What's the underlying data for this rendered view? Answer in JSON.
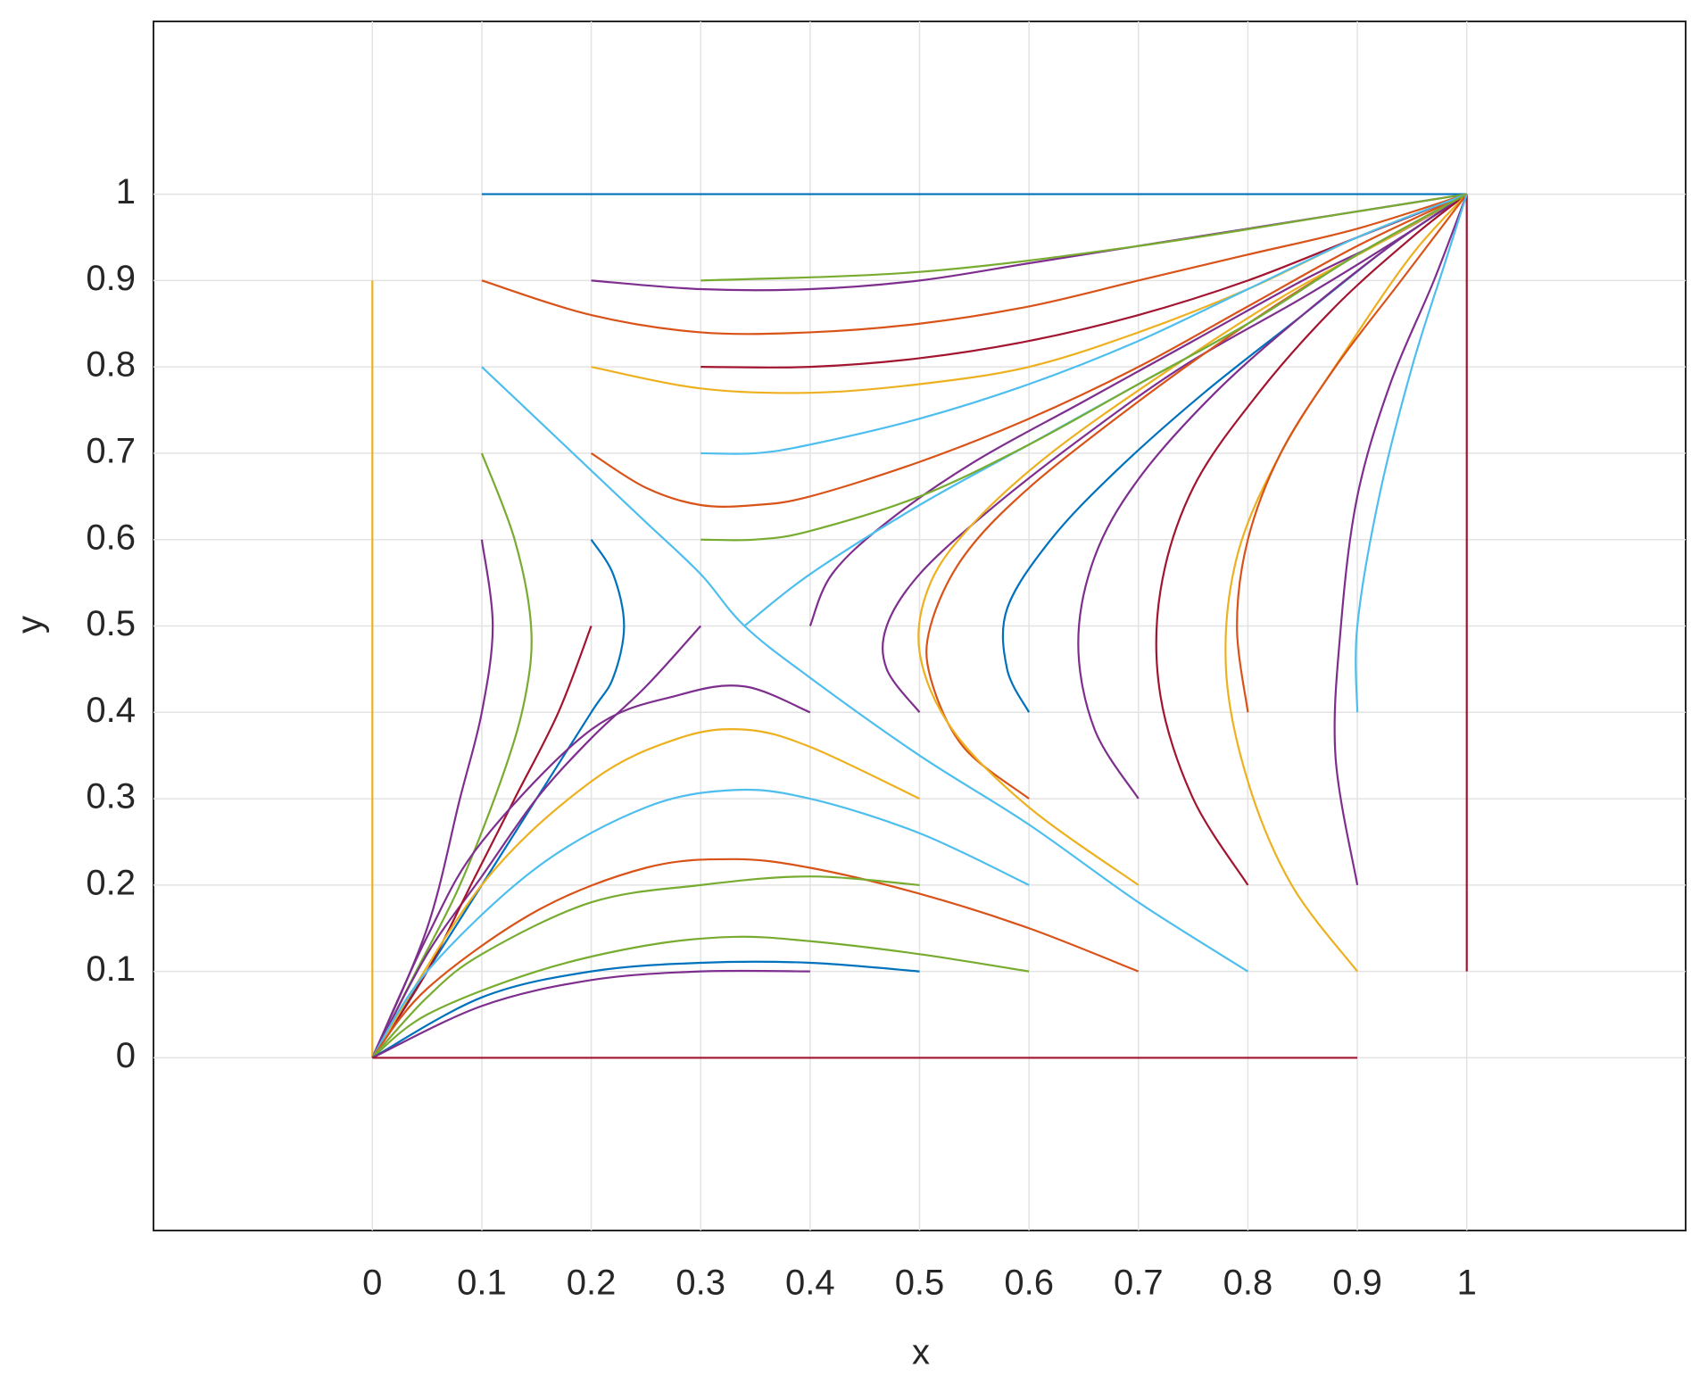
{
  "chart_data": {
    "type": "line",
    "x_label": "x",
    "y_label": "y",
    "xlim": [
      -0.2,
      1.2
    ],
    "ylim": [
      -0.2,
      1.2
    ],
    "xticks": [
      0,
      0.1,
      0.2,
      0.3,
      0.4,
      0.5,
      0.6,
      0.7,
      0.8,
      0.9,
      1
    ],
    "yticks": [
      0,
      0.1,
      0.2,
      0.3,
      0.4,
      0.5,
      0.6,
      0.7,
      0.8,
      0.9,
      1
    ],
    "grid": true,
    "series": [
      {
        "color": "#0072BD",
        "x": [
          0.1,
          1
        ],
        "values": [
          1,
          1
        ]
      },
      {
        "color": "#D95319",
        "x": [
          0.1,
          0.2,
          0.3,
          0.4,
          0.5,
          0.6,
          0.7,
          0.8,
          0.9,
          1
        ],
        "values": [
          0.9,
          0.86,
          0.84,
          0.84,
          0.85,
          0.87,
          0.9,
          0.93,
          0.96,
          1
        ]
      },
      {
        "color": "#7E2F8E",
        "x": [
          0.2,
          0.3,
          0.4,
          0.5,
          0.6,
          0.7,
          0.8,
          0.9,
          1
        ],
        "values": [
          0.9,
          0.89,
          0.89,
          0.9,
          0.92,
          0.94,
          0.96,
          0.98,
          1
        ]
      },
      {
        "color": "#77AC30",
        "x": [
          0.3,
          0.5,
          0.7,
          0.9,
          1
        ],
        "values": [
          0.9,
          0.91,
          0.94,
          0.98,
          1
        ]
      },
      {
        "color": "#EDB120",
        "x": [
          0.2,
          0.3,
          0.4,
          0.5,
          0.6,
          0.7,
          0.8,
          0.9,
          1
        ],
        "values": [
          0.8,
          0.775,
          0.77,
          0.78,
          0.8,
          0.84,
          0.89,
          0.95,
          1
        ]
      },
      {
        "color": "#A2142F",
        "x": [
          0.3,
          0.4,
          0.5,
          0.6,
          0.7,
          0.8,
          0.9,
          1
        ],
        "values": [
          0.8,
          0.8,
          0.81,
          0.83,
          0.86,
          0.9,
          0.95,
          1
        ]
      },
      {
        "color": "#4DBEEE",
        "x": [
          0.1,
          0.15,
          0.2,
          0.25,
          0.3,
          0.34,
          0.4,
          0.5,
          0.6,
          0.7,
          0.8
        ],
        "values": [
          0.8,
          0.74,
          0.68,
          0.62,
          0.56,
          0.5,
          0.44,
          0.35,
          0.27,
          0.18,
          0.1
        ]
      },
      {
        "color": "#D95319",
        "x": [
          0.2,
          0.25,
          0.3,
          0.35,
          0.4,
          0.5,
          0.6,
          0.7,
          0.8,
          0.9,
          1
        ],
        "values": [
          0.7,
          0.66,
          0.64,
          0.64,
          0.65,
          0.69,
          0.74,
          0.8,
          0.87,
          0.94,
          1
        ]
      },
      {
        "color": "#4DBEEE",
        "x": [
          0.3,
          0.35,
          0.4,
          0.5,
          0.6,
          0.7,
          0.8,
          0.9,
          1
        ],
        "values": [
          0.7,
          0.7,
          0.71,
          0.74,
          0.78,
          0.83,
          0.89,
          0.95,
          1
        ]
      },
      {
        "color": "#0072BD",
        "x": [
          0.2,
          0.22,
          0.23,
          0.22,
          0.2,
          0.15,
          0.1,
          0.05,
          0
        ],
        "values": [
          0.6,
          0.56,
          0.5,
          0.44,
          0.4,
          0.3,
          0.2,
          0.1,
          0
        ]
      },
      {
        "color": "#77AC30",
        "x": [
          0.1,
          0.13,
          0.145,
          0.14,
          0.12,
          0.08,
          0.04,
          0
        ],
        "values": [
          0.7,
          0.6,
          0.5,
          0.42,
          0.33,
          0.2,
          0.1,
          0
        ]
      },
      {
        "color": "#7E2F8E",
        "x": [
          0.1,
          0.11,
          0.1,
          0.08,
          0.05,
          0
        ],
        "values": [
          0.6,
          0.5,
          0.4,
          0.3,
          0.15,
          0
        ]
      },
      {
        "color": "#EDB120",
        "x": [
          0,
          0
        ],
        "values": [
          0.9,
          0
        ]
      },
      {
        "color": "#7E2F8E",
        "x": [
          0.3,
          0.25,
          0.2,
          0.15,
          0.1,
          0.05,
          0
        ],
        "values": [
          0.5,
          0.43,
          0.37,
          0.3,
          0.21,
          0.12,
          0
        ]
      },
      {
        "color": "#A2142F",
        "x": [
          0.2,
          0.17,
          0.13,
          0.09,
          0.05,
          0
        ],
        "values": [
          0.5,
          0.4,
          0.3,
          0.2,
          0.1,
          0
        ]
      },
      {
        "color": "#7E2F8E",
        "x": [
          0.4,
          0.34,
          0.28,
          0.2,
          0.1,
          0.05,
          0
        ],
        "values": [
          0.4,
          0.43,
          0.42,
          0.38,
          0.25,
          0.14,
          0
        ]
      },
      {
        "color": "#EDB120",
        "x": [
          0.5,
          0.4,
          0.34,
          0.28,
          0.2,
          0.1,
          0
        ],
        "values": [
          0.3,
          0.36,
          0.38,
          0.37,
          0.32,
          0.2,
          0
        ]
      },
      {
        "color": "#4DBEEE",
        "x": [
          0.6,
          0.5,
          0.4,
          0.33,
          0.25,
          0.15,
          0.05,
          0
        ],
        "values": [
          0.2,
          0.26,
          0.3,
          0.31,
          0.29,
          0.22,
          0.1,
          0
        ]
      },
      {
        "color": "#D95319",
        "x": [
          0.7,
          0.6,
          0.5,
          0.4,
          0.33,
          0.25,
          0.15,
          0.05,
          0
        ],
        "values": [
          0.1,
          0.15,
          0.19,
          0.22,
          0.23,
          0.22,
          0.17,
          0.08,
          0
        ]
      },
      {
        "color": "#77AC30",
        "x": [
          0.5,
          0.4,
          0.3,
          0.2,
          0.1,
          0.05,
          0
        ],
        "values": [
          0.2,
          0.21,
          0.2,
          0.18,
          0.12,
          0.07,
          0
        ]
      },
      {
        "color": "#77AC30",
        "x": [
          0.6,
          0.5,
          0.4,
          0.33,
          0.25,
          0.15,
          0.05,
          0
        ],
        "values": [
          0.1,
          0.12,
          0.135,
          0.14,
          0.13,
          0.1,
          0.05,
          0
        ]
      },
      {
        "color": "#0072BD",
        "x": [
          0.5,
          0.4,
          0.3,
          0.2,
          0.1,
          0
        ],
        "values": [
          0.1,
          0.11,
          0.11,
          0.1,
          0.07,
          0
        ]
      },
      {
        "color": "#7E2F8E",
        "x": [
          0.4,
          0.3,
          0.2,
          0.1,
          0
        ],
        "values": [
          0.1,
          0.1,
          0.09,
          0.06,
          0
        ]
      },
      {
        "color": "#A2142F",
        "x": [
          0,
          0.9
        ],
        "values": [
          0,
          0
        ]
      },
      {
        "color": "#7E2F8E",
        "x": [
          0.4,
          0.42,
          0.47,
          0.55,
          0.65,
          0.75,
          0.85,
          0.93,
          1
        ],
        "values": [
          0.5,
          0.56,
          0.62,
          0.69,
          0.76,
          0.83,
          0.9,
          0.95,
          1
        ]
      },
      {
        "color": "#7E2F8E",
        "x": [
          0.5,
          0.47,
          0.47,
          0.5,
          0.56,
          0.64,
          0.74,
          0.85,
          0.94,
          1
        ],
        "values": [
          0.4,
          0.45,
          0.5,
          0.56,
          0.63,
          0.71,
          0.8,
          0.88,
          0.95,
          1
        ]
      },
      {
        "color": "#D95319",
        "x": [
          0.6,
          0.54,
          0.51,
          0.51,
          0.54,
          0.6,
          0.7,
          0.8,
          0.9,
          1
        ],
        "values": [
          0.3,
          0.36,
          0.44,
          0.5,
          0.58,
          0.66,
          0.76,
          0.85,
          0.93,
          1
        ]
      },
      {
        "color": "#EDB120",
        "x": [
          0.7,
          0.6,
          0.53,
          0.5,
          0.51,
          0.55,
          0.62,
          0.72,
          0.83,
          0.93,
          1
        ],
        "values": [
          0.2,
          0.29,
          0.38,
          0.47,
          0.55,
          0.62,
          0.7,
          0.79,
          0.88,
          0.95,
          1
        ]
      },
      {
        "color": "#0072BD",
        "x": [
          0.6,
          0.58,
          0.58,
          0.62,
          0.68,
          0.76,
          0.85,
          0.93,
          1
        ],
        "values": [
          0.4,
          0.45,
          0.52,
          0.6,
          0.68,
          0.77,
          0.86,
          0.94,
          1
        ]
      },
      {
        "color": "#7E2F8E",
        "x": [
          0.7,
          0.66,
          0.645,
          0.66,
          0.7,
          0.77,
          0.85,
          0.93,
          1
        ],
        "values": [
          0.3,
          0.38,
          0.48,
          0.58,
          0.67,
          0.77,
          0.86,
          0.94,
          1
        ]
      },
      {
        "color": "#A2142F",
        "x": [
          0.8,
          0.75,
          0.72,
          0.72,
          0.75,
          0.81,
          0.88,
          0.95,
          1
        ],
        "values": [
          0.2,
          0.3,
          0.42,
          0.54,
          0.66,
          0.77,
          0.87,
          0.95,
          1
        ]
      },
      {
        "color": "#EDB120",
        "x": [
          0.9,
          0.84,
          0.8,
          0.78,
          0.79,
          0.83,
          0.89,
          0.95,
          1
        ],
        "values": [
          0.1,
          0.2,
          0.32,
          0.45,
          0.58,
          0.7,
          0.82,
          0.93,
          1
        ]
      },
      {
        "color": "#D95319",
        "x": [
          0.8,
          0.79,
          0.8,
          0.83,
          0.88,
          0.94,
          1
        ],
        "values": [
          0.4,
          0.5,
          0.6,
          0.7,
          0.8,
          0.9,
          1
        ]
      },
      {
        "color": "#7E2F8E",
        "x": [
          0.9,
          0.88,
          0.885,
          0.9,
          0.93,
          0.97,
          1
        ],
        "values": [
          0.2,
          0.35,
          0.5,
          0.65,
          0.78,
          0.9,
          1
        ]
      },
      {
        "color": "#4DBEEE",
        "x": [
          0.34,
          0.4,
          0.5,
          0.6,
          0.7,
          0.8,
          0.9,
          1
        ],
        "values": [
          0.5,
          0.56,
          0.64,
          0.71,
          0.78,
          0.85,
          0.93,
          1
        ]
      },
      {
        "color": "#A2142F",
        "x": [
          1,
          1
        ],
        "values": [
          0.1,
          1
        ]
      },
      {
        "color": "#4DBEEE",
        "x": [
          0.9,
          0.9,
          0.92,
          0.95,
          0.98,
          1
        ],
        "values": [
          0.4,
          0.5,
          0.65,
          0.8,
          0.92,
          1
        ]
      },
      {
        "color": "#77AC30",
        "x": [
          0.3,
          0.35,
          0.4,
          0.5,
          0.6,
          0.7,
          0.8,
          0.9,
          1
        ],
        "values": [
          0.6,
          0.6,
          0.61,
          0.65,
          0.71,
          0.78,
          0.85,
          0.93,
          1
        ]
      }
    ]
  }
}
